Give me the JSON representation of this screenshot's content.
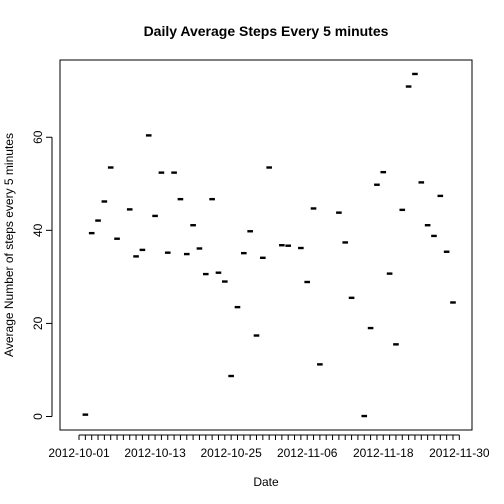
{
  "chart_data": {
    "type": "scatter",
    "marker": "horizontal-dash",
    "title": "Daily Average Steps Every 5 minutes",
    "xlabel": "Date",
    "ylabel": "Average Number of steps every 5 minutes",
    "x_tick_labels": [
      "2012-10-01",
      "2012-10-13",
      "2012-10-25",
      "2012-11-06",
      "2012-11-18",
      "2012-11-30"
    ],
    "x_tick_positions": [
      "2012-10-01",
      "2012-10-13",
      "2012-10-25",
      "2012-11-06",
      "2012-11-18",
      "2012-11-30"
    ],
    "y_ticks": [
      0,
      20,
      40,
      60
    ],
    "xlim": [
      "2012-09-28",
      "2012-12-02"
    ],
    "ylim": [
      -2.9,
      76.6
    ],
    "grid": false,
    "legend": "none",
    "x": [
      "2012-10-02",
      "2012-10-03",
      "2012-10-04",
      "2012-10-05",
      "2012-10-06",
      "2012-10-07",
      "2012-10-09",
      "2012-10-10",
      "2012-10-11",
      "2012-10-12",
      "2012-10-13",
      "2012-10-14",
      "2012-10-15",
      "2012-10-16",
      "2012-10-17",
      "2012-10-18",
      "2012-10-19",
      "2012-10-20",
      "2012-10-21",
      "2012-10-22",
      "2012-10-23",
      "2012-10-24",
      "2012-10-25",
      "2012-10-26",
      "2012-10-27",
      "2012-10-28",
      "2012-10-29",
      "2012-10-30",
      "2012-10-31",
      "2012-11-02",
      "2012-11-03",
      "2012-11-05",
      "2012-11-06",
      "2012-11-07",
      "2012-11-08",
      "2012-11-11",
      "2012-11-12",
      "2012-11-13",
      "2012-11-15",
      "2012-11-16",
      "2012-11-17",
      "2012-11-18",
      "2012-11-19",
      "2012-11-20",
      "2012-11-21",
      "2012-11-22",
      "2012-11-23",
      "2012-11-24",
      "2012-11-25",
      "2012-11-26",
      "2012-11-27",
      "2012-11-28",
      "2012-11-29"
    ],
    "values": [
      0.4,
      39.4,
      42.1,
      46.2,
      53.5,
      38.2,
      44.5,
      34.4,
      35.8,
      60.4,
      43.1,
      52.4,
      35.2,
      52.4,
      46.7,
      34.9,
      41.1,
      36.1,
      30.6,
      46.7,
      30.9,
      29.0,
      8.7,
      23.5,
      35.1,
      39.8,
      17.4,
      34.1,
      53.5,
      36.8,
      36.7,
      36.2,
      28.9,
      44.7,
      11.2,
      43.8,
      37.4,
      25.5,
      0.1,
      19.0,
      49.8,
      52.5,
      30.7,
      15.5,
      44.4,
      70.9,
      73.6,
      50.3,
      41.1,
      38.8,
      47.4,
      35.4,
      24.5
    ]
  }
}
